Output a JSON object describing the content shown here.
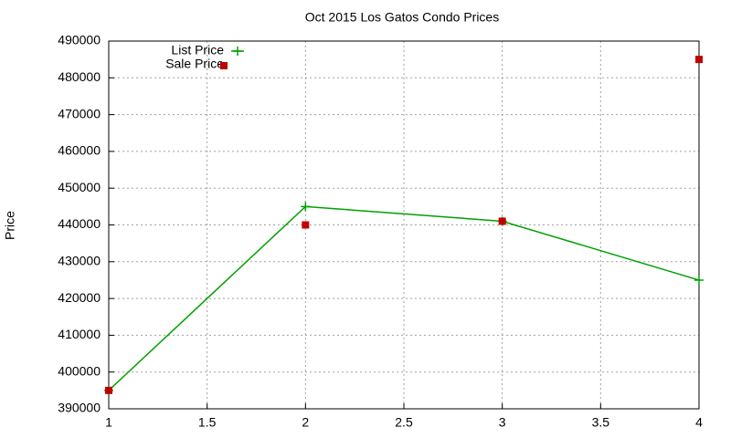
{
  "chart_data": {
    "type": "line",
    "title": "Oct 2015 Los Gatos Condo Prices",
    "y_label": "Price",
    "x": [
      1,
      2,
      3,
      4
    ],
    "series": [
      {
        "name": "List Price",
        "color": "#00a000",
        "mode": "lines+markers",
        "marker": "plus",
        "values": [
          395000,
          445000,
          441000,
          425000
        ]
      },
      {
        "name": "Sale Price",
        "color": "#c00000",
        "mode": "markers",
        "marker": "square",
        "values": [
          395000,
          440000,
          441000,
          485000
        ]
      }
    ],
    "xlim": [
      1,
      4
    ],
    "xticks": [
      1,
      1.5,
      2,
      2.5,
      3,
      3.5,
      4
    ],
    "ylim": [
      390000,
      490000
    ],
    "yticks": [
      390000,
      400000,
      410000,
      420000,
      430000,
      440000,
      450000,
      460000,
      470000,
      480000,
      490000
    ],
    "grid": true,
    "legend": "top-left"
  }
}
